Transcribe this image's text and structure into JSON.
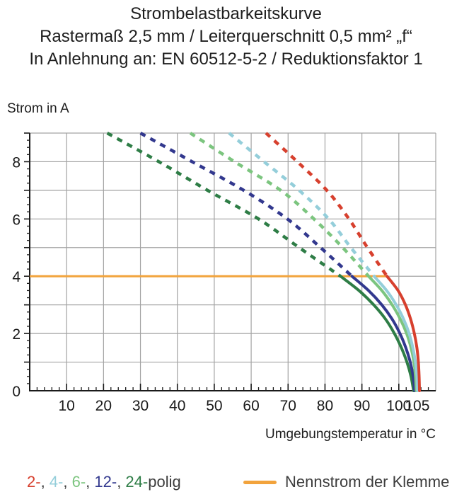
{
  "title": {
    "line1": "Strombelastbarkeitskurve",
    "line2": "Rastermaß 2,5 mm / Leiterquerschnitt 0,5 mm² „f“",
    "line3": "In Anlehnung an: EN 60512-5-2 / Reduktionsfaktor 1"
  },
  "colors": {
    "grid": "#a3a3a3",
    "axis": "#1a1a1a",
    "text": "#1e1e1e",
    "legend_text": "#3c3c3c"
  },
  "chart_data": {
    "type": "line",
    "title": "Strombelastbarkeitskurve",
    "xlabel": "Umgebungstemperatur in °C",
    "ylabel": "Strom in A",
    "xlim": [
      0,
      110
    ],
    "ylim": [
      0,
      9
    ],
    "grid": true,
    "axes": {
      "x": {
        "label": "Umgebungstemperatur in °C",
        "min": 0,
        "max": 110,
        "grid_step": 10,
        "major_tick_step": 10,
        "minor_tick_step": 2,
        "tick_labels": [
          10,
          20,
          30,
          40,
          50,
          60,
          70,
          80,
          90,
          100,
          105
        ]
      },
      "y": {
        "label": "Strom in A",
        "min": 0,
        "max": 9,
        "grid_step": 1,
        "major_tick_step": 1,
        "minor_tick_step": 0.25,
        "tick_labels": [
          0,
          2,
          4,
          6,
          8
        ]
      }
    },
    "nennstrom": {
      "label": "Nennstrom der Klemme",
      "value": 4,
      "x_start": 0,
      "x_end": 96.8,
      "color": "#f2a33c"
    },
    "series": [
      {
        "name": "2-polig",
        "legend_label": "2-",
        "color": "#d7402e",
        "dashed": [
          [
            64,
            9
          ],
          [
            72.5,
            8
          ],
          [
            80.5,
            7
          ],
          [
            86.5,
            6
          ],
          [
            91.5,
            5
          ],
          [
            96.8,
            4
          ]
        ],
        "solid": [
          [
            96.8,
            4
          ],
          [
            99.8,
            3.5
          ],
          [
            101.8,
            3
          ],
          [
            103.2,
            2.5
          ],
          [
            104.2,
            2
          ],
          [
            104.9,
            1.5
          ],
          [
            105.3,
            1
          ],
          [
            105.5,
            0.5
          ],
          [
            105.6,
            0
          ]
        ]
      },
      {
        "name": "4-polig",
        "legend_label": "4-",
        "color": "#94ceda",
        "dashed": [
          [
            54,
            9
          ],
          [
            63.5,
            8
          ],
          [
            73,
            7
          ],
          [
            81,
            6
          ],
          [
            87,
            5
          ],
          [
            93.3,
            4
          ]
        ],
        "solid": [
          [
            93.3,
            4
          ],
          [
            96.7,
            3.5
          ],
          [
            99.3,
            3
          ],
          [
            101.3,
            2.5
          ],
          [
            102.8,
            2
          ],
          [
            103.8,
            1.5
          ],
          [
            104.5,
            1
          ],
          [
            104.9,
            0.5
          ],
          [
            105.0,
            0
          ]
        ]
      },
      {
        "name": "6-polig",
        "legend_label": "6-",
        "color": "#7cc57f",
        "dashed": [
          [
            43.5,
            9
          ],
          [
            55.5,
            8
          ],
          [
            68,
            7
          ],
          [
            77,
            6
          ],
          [
            84.8,
            5
          ],
          [
            91.8,
            4
          ]
        ],
        "solid": [
          [
            91.8,
            4
          ],
          [
            95.4,
            3.5
          ],
          [
            98.2,
            3
          ],
          [
            100.4,
            2.5
          ],
          [
            102.1,
            2
          ],
          [
            103.3,
            1.5
          ],
          [
            104.1,
            1
          ],
          [
            104.5,
            0.5
          ],
          [
            104.7,
            0
          ]
        ]
      },
      {
        "name": "12-polig",
        "legend_label": "12-",
        "color": "#32388e",
        "dashed": [
          [
            30,
            9
          ],
          [
            44,
            8
          ],
          [
            58,
            7
          ],
          [
            69.8,
            6
          ],
          [
            78.8,
            5
          ],
          [
            87.3,
            4
          ]
        ],
        "solid": [
          [
            87.3,
            4
          ],
          [
            91.8,
            3.5
          ],
          [
            95.4,
            3
          ],
          [
            98.2,
            2.5
          ],
          [
            100.3,
            2
          ],
          [
            101.9,
            1.5
          ],
          [
            103.1,
            1
          ],
          [
            103.9,
            0.5
          ],
          [
            104.3,
            0
          ]
        ]
      },
      {
        "name": "24-polig",
        "legend_label": "24-",
        "color": "#2e7d46",
        "dashed": [
          [
            21,
            9
          ],
          [
            35,
            8
          ],
          [
            48.2,
            7
          ],
          [
            62,
            6
          ],
          [
            73,
            5
          ],
          [
            84.2,
            4
          ]
        ],
        "solid": [
          [
            84.2,
            4
          ],
          [
            89.2,
            3.5
          ],
          [
            93.2,
            3
          ],
          [
            96.4,
            2.5
          ],
          [
            98.8,
            2
          ],
          [
            100.7,
            1.5
          ],
          [
            102.2,
            1
          ],
          [
            103.3,
            0.5
          ],
          [
            104.0,
            0
          ]
        ]
      }
    ]
  },
  "legend": {
    "separator": ", ",
    "suffix": "polig",
    "items": [
      {
        "label": "2-",
        "color": "#d7402e"
      },
      {
        "label": "4-",
        "color": "#94ceda"
      },
      {
        "label": "6-",
        "color": "#7cc57f"
      },
      {
        "label": "12-",
        "color": "#32388e"
      },
      {
        "label": "24-",
        "color": "#2e7d46"
      }
    ],
    "nennstrom_label": "Nennstrom der Klemme"
  }
}
